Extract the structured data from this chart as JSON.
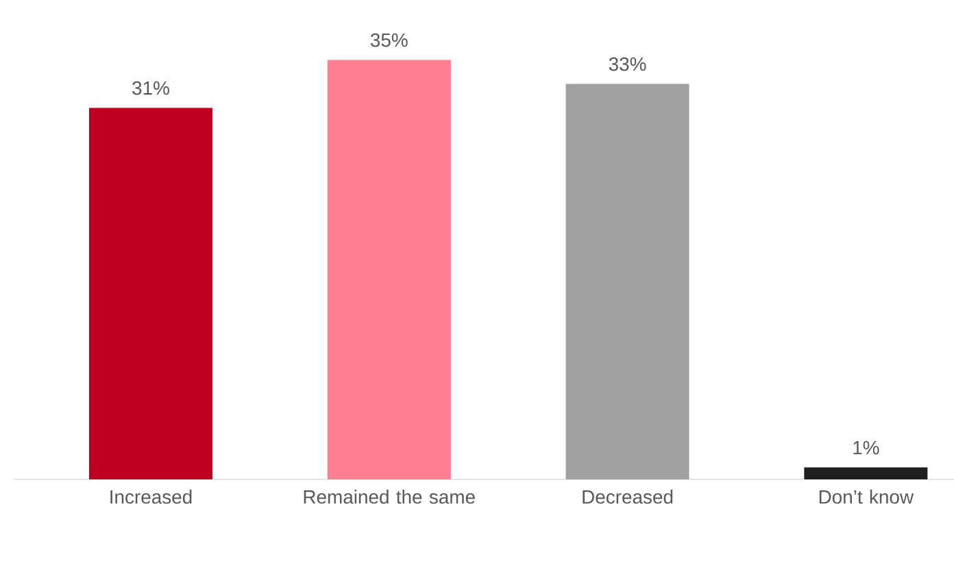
{
  "chart_data": {
    "type": "bar",
    "categories": [
      "Increased",
      "Remained the same",
      "Decreased",
      "Don’t know"
    ],
    "values": [
      31,
      35,
      33,
      1
    ],
    "colors": [
      "#c00020",
      "#ff7f91",
      "#a0a0a0",
      "#1e1e1e"
    ],
    "value_labels": [
      "31%",
      "35%",
      "33%",
      "1%"
    ]
  }
}
